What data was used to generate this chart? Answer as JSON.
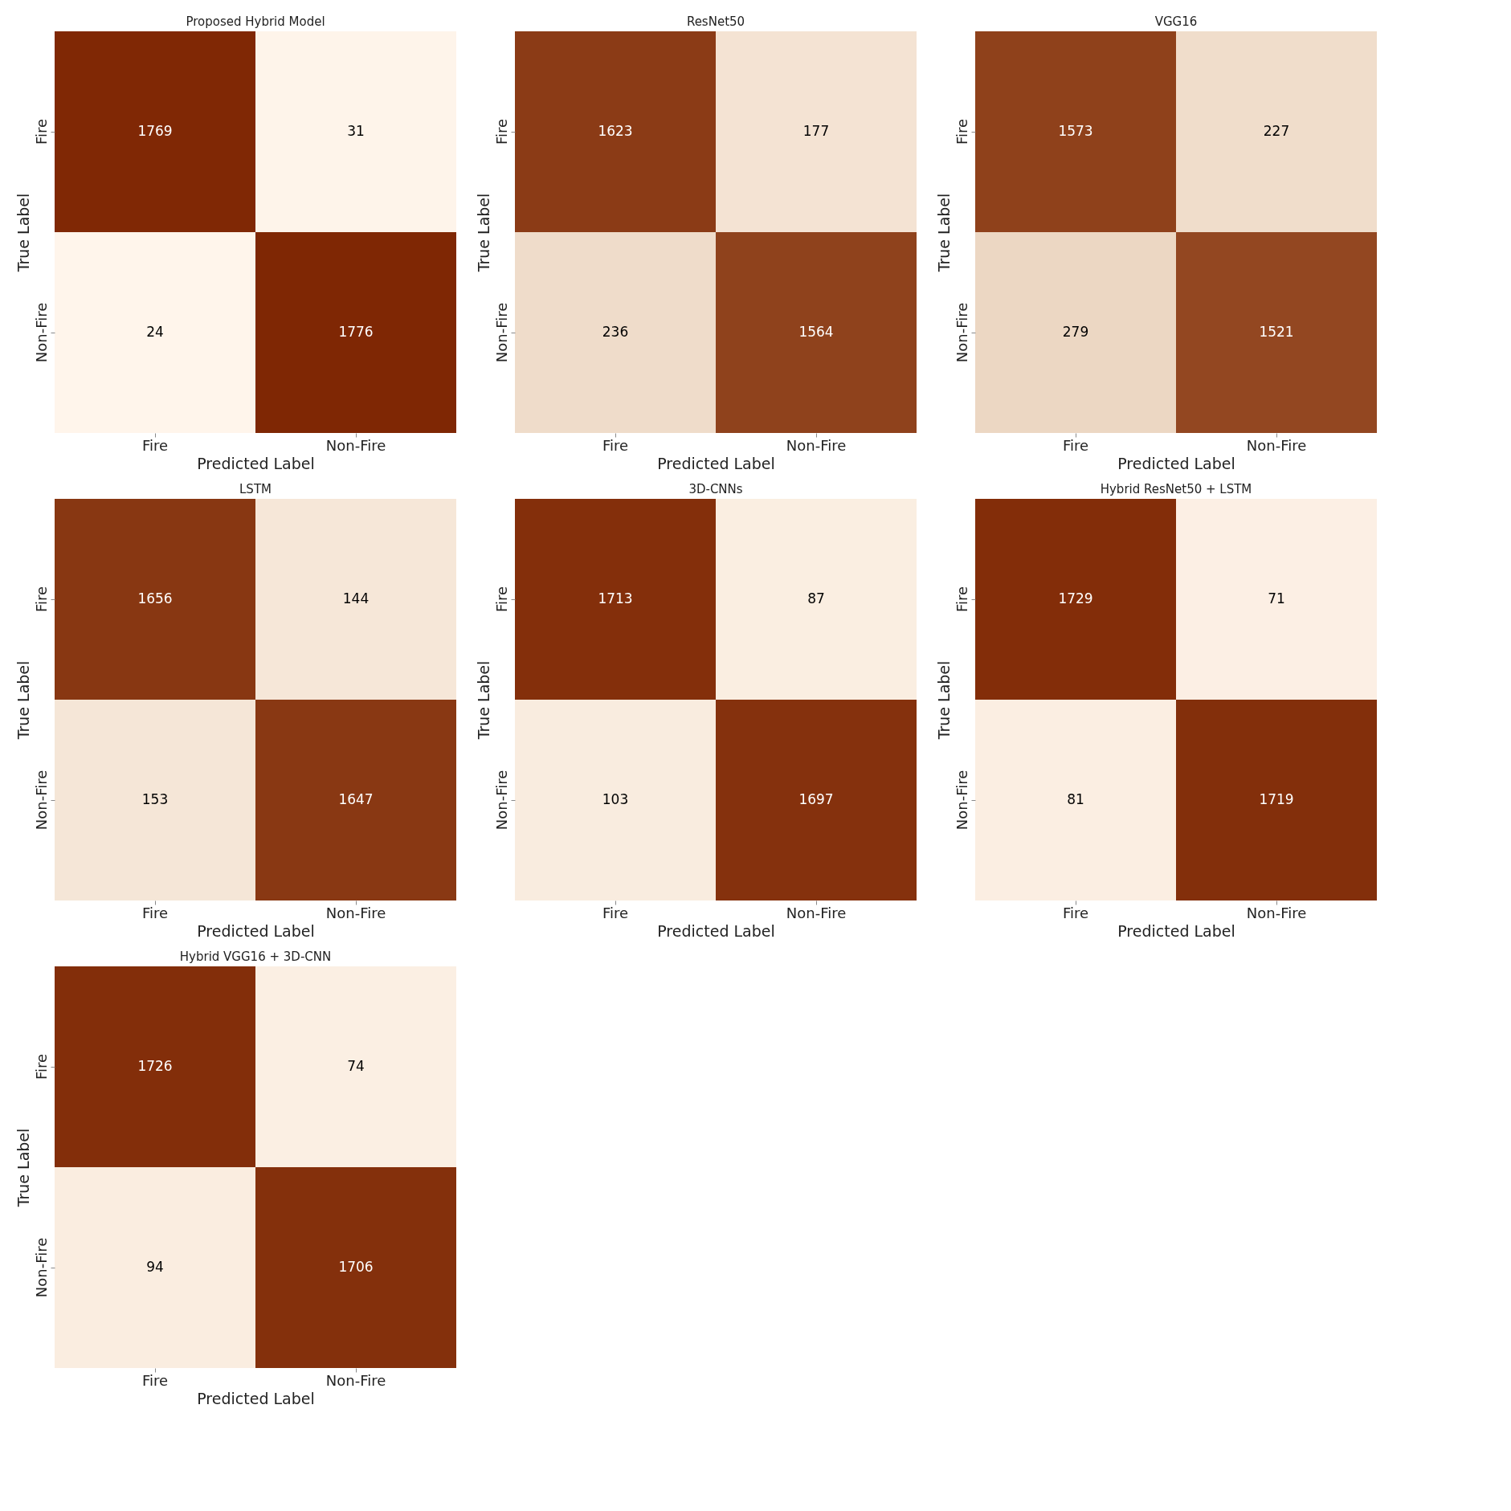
{
  "chart_data": [
    {
      "type": "heatmap",
      "title": "Proposed Hybrid Model",
      "xlabel": "Predicted Label",
      "ylabel": "True Label",
      "categories": [
        "Fire",
        "Non-Fire"
      ],
      "y_categories": [
        "Fire",
        "Non-Fire"
      ],
      "cells": [
        [
          1769,
          31
        ],
        [
          24,
          1776
        ]
      ],
      "data_labels": true
    },
    {
      "type": "heatmap",
      "title": "ResNet50",
      "xlabel": "Predicted Label",
      "ylabel": "True Label",
      "categories": [
        "Fire",
        "Non-Fire"
      ],
      "y_categories": [
        "Fire",
        "Non-Fire"
      ],
      "cells": [
        [
          1623,
          177
        ],
        [
          236,
          1564
        ]
      ],
      "data_labels": true
    },
    {
      "type": "heatmap",
      "title": "VGG16",
      "xlabel": "Predicted Label",
      "ylabel": "True Label",
      "categories": [
        "Fire",
        "Non-Fire"
      ],
      "y_categories": [
        "Fire",
        "Non-Fire"
      ],
      "cells": [
        [
          1573,
          227
        ],
        [
          279,
          1521
        ]
      ],
      "data_labels": true
    },
    {
      "type": "heatmap",
      "title": "LSTM",
      "xlabel": "Predicted Label",
      "ylabel": "True Label",
      "categories": [
        "Fire",
        "Non-Fire"
      ],
      "y_categories": [
        "Fire",
        "Non-Fire"
      ],
      "cells": [
        [
          1656,
          144
        ],
        [
          153,
          1647
        ]
      ],
      "data_labels": true
    },
    {
      "type": "heatmap",
      "title": "3D-CNNs",
      "xlabel": "Predicted Label",
      "ylabel": "True Label",
      "categories": [
        "Fire",
        "Non-Fire"
      ],
      "y_categories": [
        "Fire",
        "Non-Fire"
      ],
      "cells": [
        [
          1713,
          87
        ],
        [
          103,
          1697
        ]
      ],
      "data_labels": true
    },
    {
      "type": "heatmap",
      "title": "Hybrid ResNet50 + LSTM",
      "xlabel": "Predicted Label",
      "ylabel": "True Label",
      "categories": [
        "Fire",
        "Non-Fire"
      ],
      "y_categories": [
        "Fire",
        "Non-Fire"
      ],
      "cells": [
        [
          1729,
          71
        ],
        [
          81,
          1719
        ]
      ],
      "data_labels": true
    },
    {
      "type": "heatmap",
      "title": "Hybrid VGG16 + 3D-CNN",
      "xlabel": "Predicted Label",
      "ylabel": "True Label",
      "categories": [
        "Fire",
        "Non-Fire"
      ],
      "y_categories": [
        "Fire",
        "Non-Fire"
      ],
      "cells": [
        [
          1726,
          74
        ],
        [
          94,
          1706
        ]
      ],
      "data_labels": true
    }
  ]
}
